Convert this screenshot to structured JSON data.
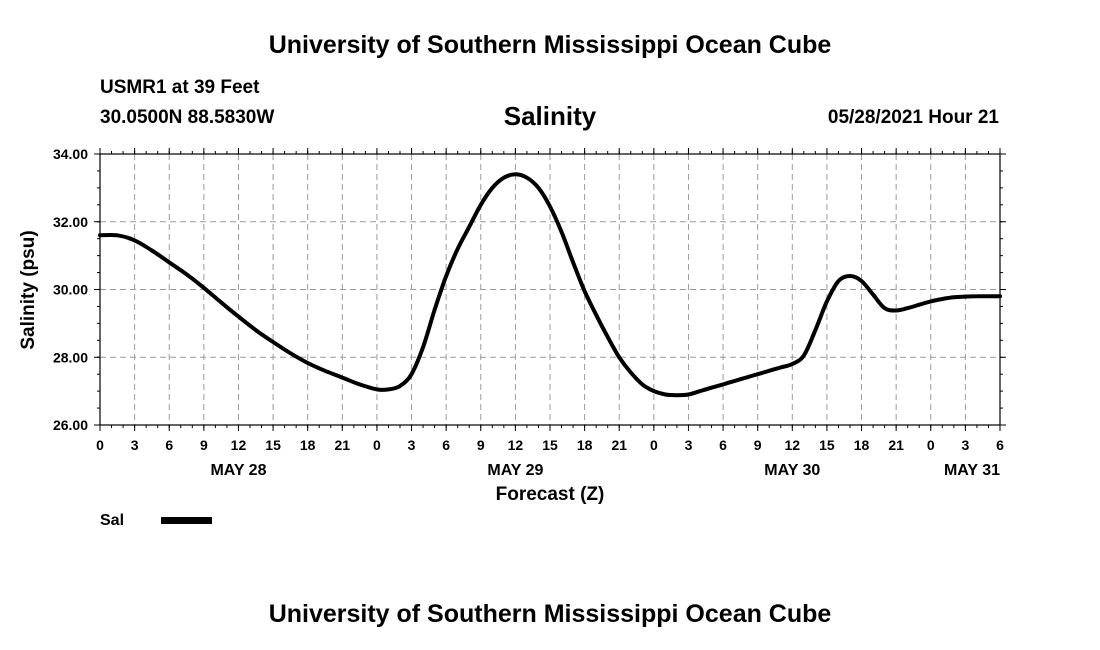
{
  "header": {
    "title": "University of Southern Mississippi Ocean Cube",
    "station": "USMR1 at 39 Feet",
    "coordinates": "30.0500N  88.5830W",
    "run_time": "05/28/2021 Hour 21"
  },
  "footer": {
    "title": "University of Southern Mississippi Ocean Cube"
  },
  "chart_data": {
    "type": "line",
    "title": "Salinity",
    "xlabel": "Forecast (Z)",
    "ylabel": "Salinity (psu)",
    "ylim": [
      26.0,
      34.0
    ],
    "xlim": [
      0,
      78
    ],
    "x_unit": "hours from 2021-05-28 00Z",
    "y_ticks": [
      "26.00",
      "28.00",
      "30.00",
      "32.00",
      "34.00"
    ],
    "x_tick_labels": [
      "0",
      "3",
      "6",
      "9",
      "12",
      "15",
      "18",
      "21",
      "0",
      "3",
      "6",
      "9",
      "12",
      "15",
      "18",
      "21",
      "0",
      "3",
      "6",
      "9",
      "12",
      "15",
      "18",
      "21",
      "0",
      "3",
      "6"
    ],
    "date_labels": [
      {
        "label": "MAY 28",
        "hour": 12
      },
      {
        "label": "MAY 29",
        "hour": 36
      },
      {
        "label": "MAY 30",
        "hour": 60
      },
      {
        "label": "MAY 31",
        "hour": 78
      }
    ],
    "grid": true,
    "legend": "bottom-left",
    "series": [
      {
        "name": "Sal",
        "color": "#000000",
        "x": [
          0,
          1.5,
          3,
          4.5,
          6,
          7.5,
          9,
          10.5,
          12,
          13.5,
          15,
          16.5,
          18,
          19.5,
          21,
          22.5,
          24,
          25,
          26,
          27,
          28,
          29,
          30,
          31,
          32,
          33,
          34,
          35,
          36,
          37,
          38,
          39,
          40,
          41,
          42,
          43,
          44,
          45,
          46,
          47,
          48,
          49,
          50,
          51,
          52,
          53,
          54,
          55,
          56,
          57,
          58,
          59,
          60,
          61,
          62,
          63,
          64,
          65,
          66,
          67,
          68,
          69,
          70,
          71,
          72,
          73,
          74,
          75,
          76,
          77,
          78
        ],
        "values": [
          31.6,
          31.6,
          31.45,
          31.15,
          30.8,
          30.45,
          30.05,
          29.62,
          29.2,
          28.8,
          28.45,
          28.12,
          27.83,
          27.6,
          27.4,
          27.2,
          27.05,
          27.05,
          27.15,
          27.5,
          28.3,
          29.4,
          30.4,
          31.2,
          31.85,
          32.5,
          33.0,
          33.3,
          33.4,
          33.3,
          33.0,
          32.45,
          31.7,
          30.8,
          29.95,
          29.25,
          28.6,
          28.0,
          27.55,
          27.2,
          27.0,
          26.9,
          26.88,
          26.9,
          27.0,
          27.1,
          27.2,
          27.3,
          27.4,
          27.5,
          27.6,
          27.7,
          27.8,
          28.05,
          28.8,
          29.65,
          30.25,
          30.4,
          30.25,
          29.85,
          29.45,
          29.38,
          29.45,
          29.55,
          29.65,
          29.72,
          29.77,
          29.79,
          29.8,
          29.8,
          29.8
        ]
      }
    ]
  }
}
